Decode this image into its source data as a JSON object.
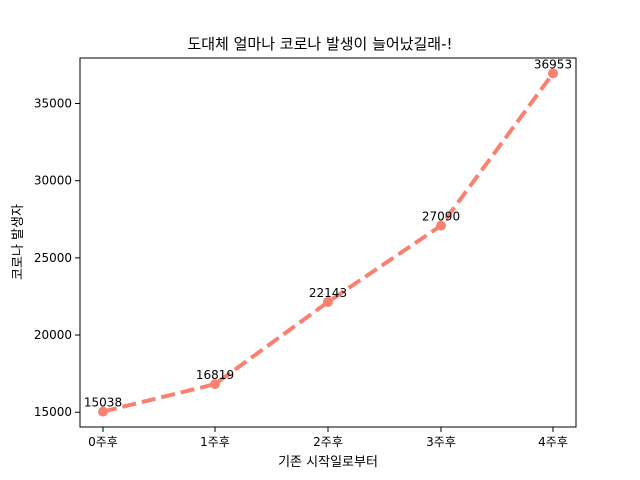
{
  "chart_data": {
    "type": "line",
    "title": "도대체 얼마나 코로나 발생이 늘어났길래-!",
    "xlabel": "기존 시작일로부터",
    "ylabel": "코로나 발생자",
    "categories": [
      "0주후",
      "1주후",
      "2주후",
      "3주후",
      "4주후"
    ],
    "values": [
      15038,
      16819,
      22143,
      27090,
      36953
    ],
    "data_labels": [
      "15038",
      "16819",
      "22143",
      "27090",
      "36953"
    ],
    "y_ticks": [
      15000,
      20000,
      25000,
      30000,
      35000
    ],
    "y_tick_labels": [
      "15000",
      "20000",
      "25000",
      "30000",
      "35000"
    ],
    "ylim": [
      14042,
      37949
    ],
    "line_style": "dashed",
    "marker": "circle",
    "color": "#fa8072",
    "grid": false,
    "legend": "none"
  }
}
